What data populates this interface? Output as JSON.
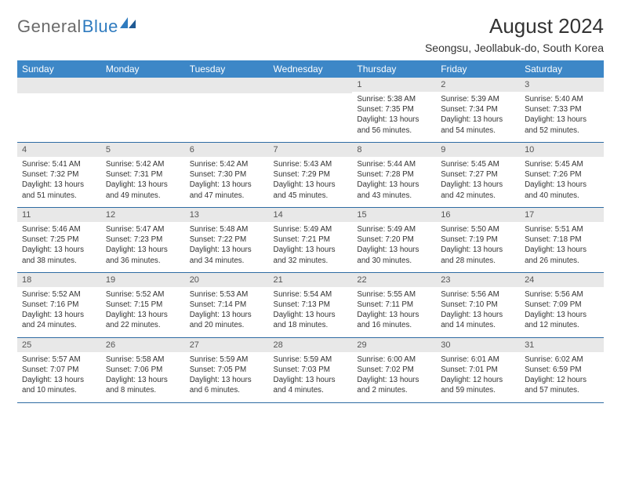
{
  "logo": {
    "text1": "General",
    "text2": "Blue"
  },
  "title": "August 2024",
  "location": "Seongsu, Jeollabuk-do, South Korea",
  "colors": {
    "header_bg": "#3d87c7",
    "header_text": "#ffffff",
    "daynum_bg": "#e8e8e8",
    "border": "#2f6ca3",
    "logo_gray": "#6a6a6a",
    "logo_blue": "#2f7bbf"
  },
  "weekdays": [
    "Sunday",
    "Monday",
    "Tuesday",
    "Wednesday",
    "Thursday",
    "Friday",
    "Saturday"
  ],
  "weeks": [
    [
      null,
      null,
      null,
      null,
      {
        "n": "1",
        "sr": "5:38 AM",
        "ss": "7:35 PM",
        "dl": "13 hours and 56 minutes."
      },
      {
        "n": "2",
        "sr": "5:39 AM",
        "ss": "7:34 PM",
        "dl": "13 hours and 54 minutes."
      },
      {
        "n": "3",
        "sr": "5:40 AM",
        "ss": "7:33 PM",
        "dl": "13 hours and 52 minutes."
      }
    ],
    [
      {
        "n": "4",
        "sr": "5:41 AM",
        "ss": "7:32 PM",
        "dl": "13 hours and 51 minutes."
      },
      {
        "n": "5",
        "sr": "5:42 AM",
        "ss": "7:31 PM",
        "dl": "13 hours and 49 minutes."
      },
      {
        "n": "6",
        "sr": "5:42 AM",
        "ss": "7:30 PM",
        "dl": "13 hours and 47 minutes."
      },
      {
        "n": "7",
        "sr": "5:43 AM",
        "ss": "7:29 PM",
        "dl": "13 hours and 45 minutes."
      },
      {
        "n": "8",
        "sr": "5:44 AM",
        "ss": "7:28 PM",
        "dl": "13 hours and 43 minutes."
      },
      {
        "n": "9",
        "sr": "5:45 AM",
        "ss": "7:27 PM",
        "dl": "13 hours and 42 minutes."
      },
      {
        "n": "10",
        "sr": "5:45 AM",
        "ss": "7:26 PM",
        "dl": "13 hours and 40 minutes."
      }
    ],
    [
      {
        "n": "11",
        "sr": "5:46 AM",
        "ss": "7:25 PM",
        "dl": "13 hours and 38 minutes."
      },
      {
        "n": "12",
        "sr": "5:47 AM",
        "ss": "7:23 PM",
        "dl": "13 hours and 36 minutes."
      },
      {
        "n": "13",
        "sr": "5:48 AM",
        "ss": "7:22 PM",
        "dl": "13 hours and 34 minutes."
      },
      {
        "n": "14",
        "sr": "5:49 AM",
        "ss": "7:21 PM",
        "dl": "13 hours and 32 minutes."
      },
      {
        "n": "15",
        "sr": "5:49 AM",
        "ss": "7:20 PM",
        "dl": "13 hours and 30 minutes."
      },
      {
        "n": "16",
        "sr": "5:50 AM",
        "ss": "7:19 PM",
        "dl": "13 hours and 28 minutes."
      },
      {
        "n": "17",
        "sr": "5:51 AM",
        "ss": "7:18 PM",
        "dl": "13 hours and 26 minutes."
      }
    ],
    [
      {
        "n": "18",
        "sr": "5:52 AM",
        "ss": "7:16 PM",
        "dl": "13 hours and 24 minutes."
      },
      {
        "n": "19",
        "sr": "5:52 AM",
        "ss": "7:15 PM",
        "dl": "13 hours and 22 minutes."
      },
      {
        "n": "20",
        "sr": "5:53 AM",
        "ss": "7:14 PM",
        "dl": "13 hours and 20 minutes."
      },
      {
        "n": "21",
        "sr": "5:54 AM",
        "ss": "7:13 PM",
        "dl": "13 hours and 18 minutes."
      },
      {
        "n": "22",
        "sr": "5:55 AM",
        "ss": "7:11 PM",
        "dl": "13 hours and 16 minutes."
      },
      {
        "n": "23",
        "sr": "5:56 AM",
        "ss": "7:10 PM",
        "dl": "13 hours and 14 minutes."
      },
      {
        "n": "24",
        "sr": "5:56 AM",
        "ss": "7:09 PM",
        "dl": "13 hours and 12 minutes."
      }
    ],
    [
      {
        "n": "25",
        "sr": "5:57 AM",
        "ss": "7:07 PM",
        "dl": "13 hours and 10 minutes."
      },
      {
        "n": "26",
        "sr": "5:58 AM",
        "ss": "7:06 PM",
        "dl": "13 hours and 8 minutes."
      },
      {
        "n": "27",
        "sr": "5:59 AM",
        "ss": "7:05 PM",
        "dl": "13 hours and 6 minutes."
      },
      {
        "n": "28",
        "sr": "5:59 AM",
        "ss": "7:03 PM",
        "dl": "13 hours and 4 minutes."
      },
      {
        "n": "29",
        "sr": "6:00 AM",
        "ss": "7:02 PM",
        "dl": "13 hours and 2 minutes."
      },
      {
        "n": "30",
        "sr": "6:01 AM",
        "ss": "7:01 PM",
        "dl": "12 hours and 59 minutes."
      },
      {
        "n": "31",
        "sr": "6:02 AM",
        "ss": "6:59 PM",
        "dl": "12 hours and 57 minutes."
      }
    ]
  ],
  "labels": {
    "sunrise": "Sunrise:",
    "sunset": "Sunset:",
    "daylight": "Daylight:"
  }
}
